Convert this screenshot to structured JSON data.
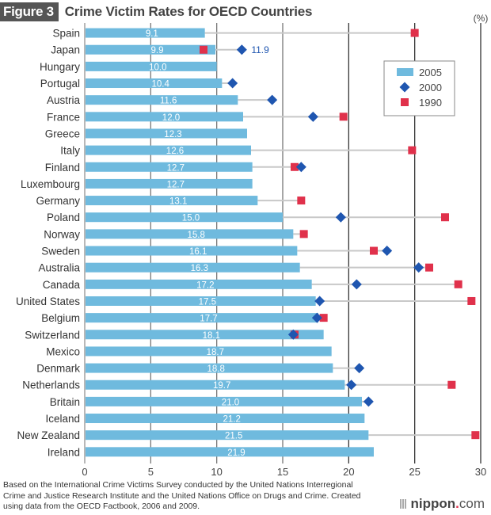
{
  "header": {
    "badge": "Figure 3",
    "title": "Crime Victim Rates for OECD Countries"
  },
  "footer": {
    "source": "Based on the International Crime Victims Survey conducted by the United Nations Interregional Crime and Justice Research Institute and the United Nations Office on Drugs and Crime. Created using data from the OECD Factbook, 2006 and 2009.",
    "logo_brand": "nippon",
    "logo_dot": ".",
    "logo_tld": "com"
  },
  "colors": {
    "bar_2005": "#6fbade",
    "marker_2000": "#1f56b0",
    "marker_1990": "#e0314b",
    "connector": "#c8c8c8",
    "grid": "#666666"
  },
  "chart_data": {
    "type": "bar",
    "orientation": "horizontal",
    "title": "Crime Victim Rates for OECD Countries",
    "unit_label": "(%)",
    "xlabel": "",
    "ylabel": "",
    "xlim": [
      0,
      30
    ],
    "xticks": [
      0,
      5,
      10,
      15,
      20,
      25,
      30
    ],
    "grid": true,
    "legend_position": "top-right",
    "legend": [
      {
        "name": "2005",
        "marker": "bar"
      },
      {
        "name": "2000",
        "marker": "diamond"
      },
      {
        "name": "1990",
        "marker": "square"
      }
    ],
    "categories": [
      "Spain",
      "Japan",
      "Hungary",
      "Portugal",
      "Austria",
      "France",
      "Greece",
      "Italy",
      "Finland",
      "Luxembourg",
      "Germany",
      "Poland",
      "Norway",
      "Sweden",
      "Australia",
      "Canada",
      "United States",
      "Belgium",
      "Switzerland",
      "Mexico",
      "Denmark",
      "Netherlands",
      "Britain",
      "Iceland",
      "New Zealand",
      "Ireland"
    ],
    "series": [
      {
        "name": "2005",
        "type": "bar",
        "values": [
          9.1,
          9.9,
          10.0,
          10.4,
          11.6,
          12.0,
          12.3,
          12.6,
          12.7,
          12.7,
          13.1,
          15.0,
          15.8,
          16.1,
          16.3,
          17.2,
          17.5,
          17.7,
          18.1,
          18.7,
          18.8,
          19.7,
          21.0,
          21.2,
          21.5,
          21.9
        ],
        "labels": [
          "9.1",
          "9.9",
          "10.0",
          "10.4",
          "11.6",
          "12.0",
          "12.3",
          "12.6",
          "12.7",
          "12.7",
          "13.1",
          "15.0",
          "15.8",
          "16.1",
          "16.3",
          "17.2",
          "17.5",
          "17.7",
          "18.1",
          "18.7",
          "18.8",
          "19.7",
          "21.0",
          "21.2",
          "21.5",
          "21.9"
        ]
      },
      {
        "name": "2000",
        "type": "scatter",
        "marker": "diamond",
        "values": [
          null,
          11.9,
          null,
          11.2,
          14.2,
          17.3,
          null,
          null,
          16.4,
          null,
          null,
          19.4,
          null,
          22.9,
          25.3,
          20.6,
          17.8,
          17.6,
          15.8,
          null,
          20.8,
          20.2,
          21.5,
          null,
          null,
          null
        ]
      },
      {
        "name": "1990",
        "type": "scatter",
        "marker": "square",
        "values": [
          25.0,
          9.0,
          null,
          null,
          null,
          19.6,
          null,
          24.8,
          15.9,
          null,
          16.4,
          27.3,
          16.6,
          21.9,
          26.1,
          28.3,
          29.3,
          18.1,
          15.9,
          null,
          null,
          27.8,
          null,
          null,
          29.6,
          null
        ]
      }
    ],
    "annotations": [
      {
        "category": "Japan",
        "series": "2000",
        "text": "11.9"
      }
    ]
  }
}
